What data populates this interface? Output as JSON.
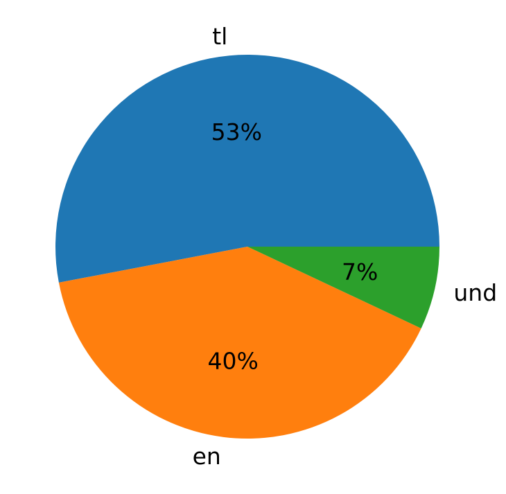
{
  "chart_data": {
    "type": "pie",
    "categories": [
      "tl",
      "en",
      "und"
    ],
    "values": [
      53,
      40,
      7
    ],
    "value_labels": [
      "53%",
      "40%",
      "7%"
    ],
    "colors": [
      "#1f77b4",
      "#ff7f0e",
      "#2ca02c"
    ],
    "start_angle": "3 o'clock",
    "direction": "counterclockwise",
    "legend": "none"
  }
}
